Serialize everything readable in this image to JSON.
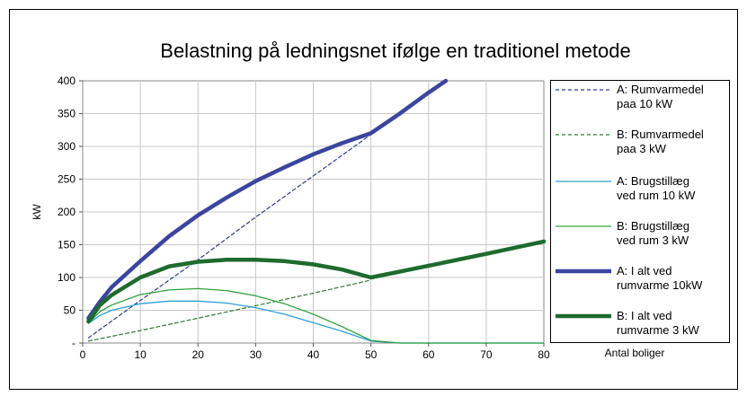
{
  "chart_data": {
    "type": "line",
    "title": "Belastning på ledningsnet ifølge en traditionel metode",
    "xlabel": "Antal boliger",
    "ylabel": "kW",
    "xlim": [
      0,
      80
    ],
    "ylim": [
      0,
      400
    ],
    "x_ticks": [
      "0",
      "10",
      "20",
      "30",
      "40",
      "50",
      "60",
      "70",
      "80"
    ],
    "y_ticks": [
      "-",
      "50",
      "100",
      "150",
      "200",
      "250",
      "300",
      "350",
      "400"
    ],
    "grid": true,
    "legend_position": "right",
    "series": [
      {
        "legend_lines": [
          "A: Rumvarmedel",
          "paa 10 kW"
        ],
        "color": "#2b3a9a",
        "style": "dashed",
        "width": 1.2,
        "x": [
          1,
          10,
          20,
          30,
          40,
          50
        ],
        "y": [
          8,
          65,
          127,
          192,
          255,
          318
        ]
      },
      {
        "legend_lines": [
          "B: Rumvarmedel",
          "paa 3 kW"
        ],
        "color": "#2a7a32",
        "style": "dashed",
        "width": 1.2,
        "x": [
          1,
          10,
          20,
          30,
          40,
          50
        ],
        "y": [
          3,
          19,
          38,
          57,
          76,
          96
        ]
      },
      {
        "legend_lines": [
          "A: Brugstillæg",
          "ved rum 10 kW"
        ],
        "color": "#2a9fd8",
        "style": "solid",
        "width": 1.3,
        "x": [
          1,
          3,
          5,
          10,
          15,
          20,
          25,
          30,
          35,
          40,
          45,
          50,
          55,
          60,
          70,
          80
        ],
        "y": [
          30,
          42,
          50,
          60,
          64,
          64,
          61,
          54,
          44,
          31,
          18,
          3,
          0,
          0,
          0,
          0
        ]
      },
      {
        "legend_lines": [
          "B: Brugstillæg",
          "ved rum 3 kW"
        ],
        "color": "#2ea33a",
        "style": "solid",
        "width": 1.3,
        "x": [
          1,
          3,
          5,
          10,
          15,
          20,
          25,
          30,
          35,
          40,
          45,
          50,
          55,
          60,
          70,
          80
        ],
        "y": [
          30,
          48,
          58,
          74,
          81,
          83,
          80,
          72,
          60,
          44,
          25,
          4,
          0,
          0,
          0,
          0
        ]
      },
      {
        "legend_lines": [
          "A: I alt ved",
          "rumvarme 10kW"
        ],
        "color": "#3b45a0",
        "style": "solid",
        "width": 4.5,
        "x": [
          1,
          3,
          5,
          10,
          15,
          20,
          25,
          30,
          35,
          40,
          45,
          50,
          55,
          60,
          63
        ],
        "y": [
          38,
          63,
          85,
          125,
          163,
          195,
          222,
          247,
          268,
          288,
          305,
          320,
          350,
          382,
          400
        ]
      },
      {
        "legend_lines": [
          "B: I alt ved",
          "rumvarme 3 kW"
        ],
        "color": "#1e6b2e",
        "style": "solid",
        "width": 4.5,
        "x": [
          1,
          3,
          5,
          10,
          15,
          20,
          25,
          30,
          35,
          40,
          45,
          50,
          60,
          70,
          80
        ],
        "y": [
          33,
          58,
          73,
          100,
          117,
          124,
          127,
          127,
          125,
          120,
          112,
          100,
          118,
          136,
          155
        ]
      }
    ]
  }
}
